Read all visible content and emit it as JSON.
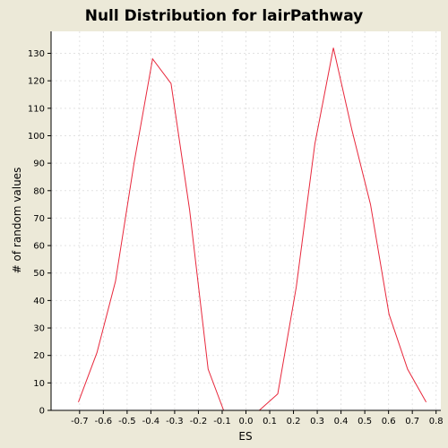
{
  "chart_data": {
    "type": "line",
    "title": "Null Distribution for lairPathway",
    "xlabel": "ES",
    "ylabel": "# of random values",
    "xlim": [
      -0.82,
      0.82
    ],
    "ylim": [
      0,
      138
    ],
    "x_ticks": [
      -0.7,
      -0.6,
      -0.5,
      -0.4,
      -0.3,
      -0.2,
      -0.1,
      0.0,
      0.1,
      0.2,
      0.3,
      0.4,
      0.5,
      0.6,
      0.7,
      0.8
    ],
    "x_tick_labels": [
      "-0.7",
      "-0.6",
      "-0.5",
      "-0.4",
      "-0.3",
      "-0.2",
      "-0.1",
      "0.0",
      "0.1",
      "0.2",
      "0.3",
      "0.4",
      "0.5",
      "0.6",
      "0.7",
      "0.8"
    ],
    "y_ticks": [
      0,
      10,
      20,
      30,
      40,
      50,
      60,
      70,
      80,
      90,
      100,
      110,
      120,
      130
    ],
    "y_tick_labels": [
      "0",
      "10",
      "20",
      "30",
      "40",
      "50",
      "60",
      "70",
      "80",
      "90",
      "100",
      "110",
      "120",
      "130"
    ],
    "grid": true,
    "series": [
      {
        "color": "#e8283c",
        "x": [
          -0.705,
          -0.627,
          -0.549,
          -0.471,
          -0.393,
          -0.315,
          -0.237,
          -0.159,
          -0.094,
          0.056,
          0.134,
          0.212,
          0.29,
          0.368,
          0.446,
          0.524,
          0.602,
          0.68,
          0.758
        ],
        "y": [
          3,
          21,
          47,
          90,
          128,
          119,
          73,
          15,
          0,
          0,
          6,
          45,
          97,
          132,
          102,
          75,
          35,
          15,
          3
        ]
      }
    ]
  }
}
